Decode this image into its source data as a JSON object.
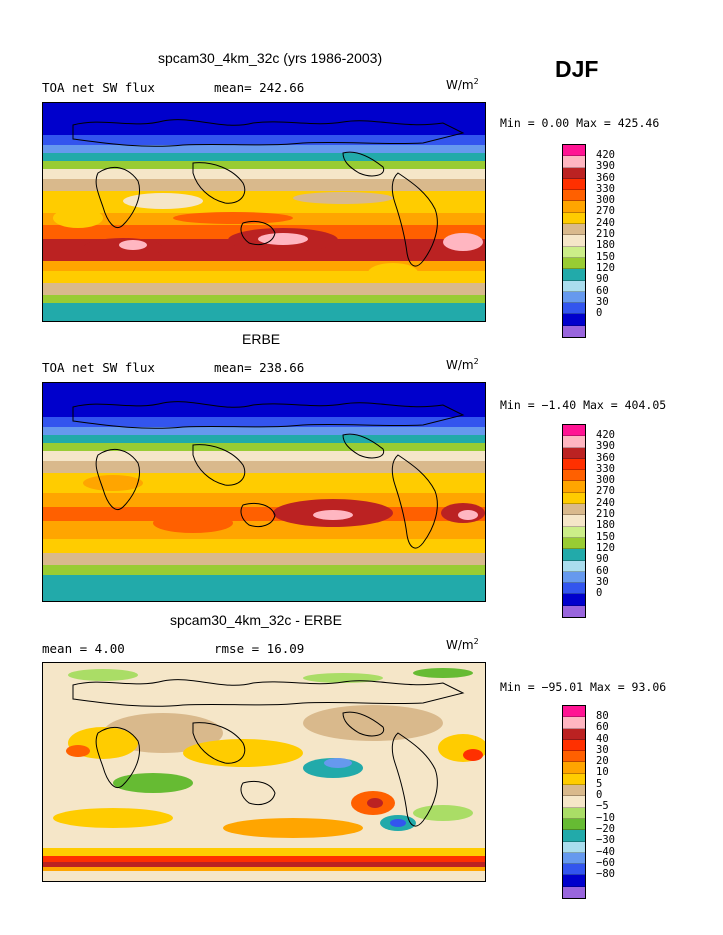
{
  "season": "DJF",
  "colors": {
    "abs_scale": [
      "#9966dd",
      "#0000cc",
      "#3355ee",
      "#6699ee",
      "#aaddee",
      "#22aaaa",
      "#99cc33",
      "#ccee88",
      "#f5e6c8",
      "#d9b98c",
      "#ffcc00",
      "#ffa500",
      "#ff6000",
      "#ff3000",
      "#bb2222",
      "#ffb6c1",
      "#ff1493"
    ],
    "diff_scale": [
      "#9966dd",
      "#0000cc",
      "#3355ee",
      "#6699ee",
      "#aaddee",
      "#22aaaa",
      "#66bb33",
      "#aadd66",
      "#f5e6c8",
      "#d9b98c",
      "#ffcc00",
      "#ffa500",
      "#ff6000",
      "#ff3000",
      "#bb2222",
      "#ffb6c1",
      "#ff1493"
    ]
  },
  "panels": [
    {
      "title": "spcam30_4km_32c (yrs 1986-2003)",
      "left_label": "TOA net SW flux",
      "mean_label": "mean= 242.66",
      "unit": "W/m",
      "unit_sup": "2",
      "minmax": "Min =   0.00 Max = 425.46",
      "colorbar_labels": [
        "420",
        "390",
        "360",
        "330",
        "300",
        "270",
        "240",
        "210",
        "180",
        "150",
        "120",
        "90",
        "60",
        "30",
        "0"
      ]
    },
    {
      "title": "ERBE",
      "left_label": "TOA net SW flux",
      "mean_label": "mean= 238.66",
      "unit": "W/m",
      "unit_sup": "2",
      "minmax": "Min =  −1.40 Max = 404.05",
      "colorbar_labels": [
        "420",
        "390",
        "360",
        "330",
        "300",
        "270",
        "240",
        "210",
        "180",
        "150",
        "120",
        "90",
        "60",
        "30",
        "0"
      ]
    },
    {
      "title": "spcam30_4km_32c - ERBE",
      "left_label": "mean =    4.00",
      "mean_label": "rmse =   16.09",
      "unit": "W/m",
      "unit_sup": "2",
      "minmax": "Min = −95.01 Max =  93.06",
      "colorbar_labels": [
        "80",
        "60",
        "40",
        "30",
        "20",
        "10",
        "5",
        "0",
        "−5",
        "−10",
        "−20",
        "−30",
        "−40",
        "−60",
        "−80"
      ]
    }
  ]
}
